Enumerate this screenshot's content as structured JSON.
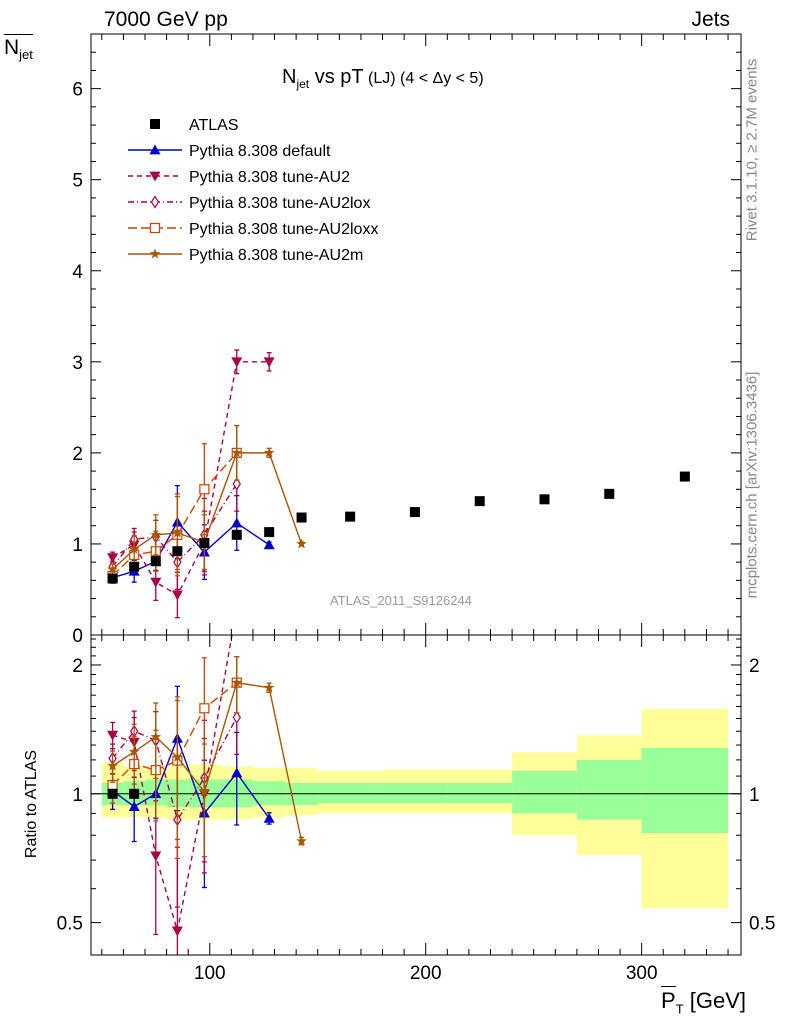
{
  "header": {
    "left": "7000 GeV pp",
    "right": "Jets"
  },
  "y_axis_title": {
    "main": "N",
    "sub": "jet"
  },
  "ratio_axis_title": "Ratio to ATLAS",
  "x_axis_title": {
    "main": "P",
    "sub": "T",
    "unit": " [GeV]"
  },
  "side_labels": {
    "rivet": "Rivet 3.1.10, ≥ 2.7M events",
    "mcplots": "mcplots.cern.ch [arXiv:1306.3436]"
  },
  "watermark": "ATLAS_2011_S9126244",
  "chart_data": {
    "type": "line",
    "title": {
      "main": "N",
      "sub": "jet",
      "rest": " vs pT",
      "qualifier": " (LJ) (4 < Δy < 5)"
    },
    "xlim": [
      45,
      346
    ],
    "main_ylim": [
      0,
      6.6
    ],
    "main_yticks": [
      "0",
      "1",
      "2",
      "3",
      "4",
      "5",
      "6"
    ],
    "ratio_ylim": [
      0.42,
      2.35
    ],
    "ratio_yticks": [
      "0.5",
      "1",
      "2"
    ],
    "x_ticks": [
      "100",
      "200",
      "300"
    ],
    "legend": [
      "ATLAS",
      "Pythia 8.308 default",
      "Pythia 8.308 tune-AU2",
      "Pythia 8.308 tune-AU2lox",
      "Pythia 8.308 tune-AU2loxx",
      "Pythia 8.308 tune-AU2m"
    ],
    "legend_position": "top-left",
    "data": {
      "name": "ATLAS",
      "color": "#000000",
      "x": [
        55,
        65,
        75,
        85,
        97.5,
        112.5,
        127.5,
        142.5,
        165,
        195,
        225,
        255,
        285,
        320
      ],
      "y": [
        0.62,
        0.75,
        0.81,
        0.92,
        1.01,
        1.1,
        1.13,
        1.29,
        1.3,
        1.35,
        1.47,
        1.49,
        1.55,
        1.74
      ]
    },
    "uncertainty_bands": {
      "edges": [
        50,
        60,
        70,
        80,
        90,
        105,
        120,
        135,
        150,
        180,
        210,
        240,
        270,
        300,
        340
      ],
      "inner": [
        [
          0.94,
          1.06
        ],
        [
          0.94,
          1.07
        ],
        [
          0.94,
          1.08
        ],
        [
          0.93,
          1.08
        ],
        [
          0.93,
          1.08
        ],
        [
          0.93,
          1.08
        ],
        [
          0.94,
          1.07
        ],
        [
          0.94,
          1.06
        ],
        [
          0.95,
          1.06
        ],
        [
          0.95,
          1.06
        ],
        [
          0.95,
          1.06
        ],
        [
          0.9,
          1.13
        ],
        [
          0.87,
          1.2
        ],
        [
          0.81,
          1.28
        ]
      ],
      "outer": [
        [
          0.88,
          1.18
        ],
        [
          0.88,
          1.16
        ],
        [
          0.88,
          1.16
        ],
        [
          0.87,
          1.16
        ],
        [
          0.87,
          1.17
        ],
        [
          0.87,
          1.16
        ],
        [
          0.88,
          1.15
        ],
        [
          0.89,
          1.15
        ],
        [
          0.9,
          1.13
        ],
        [
          0.9,
          1.14
        ],
        [
          0.9,
          1.14
        ],
        [
          0.8,
          1.25
        ],
        [
          0.72,
          1.37
        ],
        [
          0.54,
          1.58
        ]
      ],
      "inner_color": "#99ff99",
      "outer_color": "#ffff99"
    },
    "series": [
      {
        "name": "Pythia 8.308 default",
        "color": "#0000cc",
        "dash": "",
        "marker": "triangle-up",
        "x": [
          55,
          65,
          75,
          85,
          97.5,
          112.5,
          127.5
        ],
        "y": [
          0.63,
          0.7,
          0.81,
          1.24,
          0.91,
          1.23,
          0.99
        ],
        "err": [
          0.06,
          0.12,
          0.1,
          0.4,
          0.3,
          0.3,
          0.03
        ]
      },
      {
        "name": "Pythia 8.308 tune-AU2",
        "color": "#aa0044",
        "dash": "5,4",
        "marker": "triangle-down",
        "x": [
          55,
          65,
          75,
          85,
          97.5,
          112.5,
          127.5
        ],
        "y": [
          0.85,
          0.99,
          0.58,
          0.44,
          1.01,
          3.0,
          3.0
        ],
        "err": [
          0.06,
          0.14,
          0.2,
          0.25,
          0.35,
          0.13,
          0.1
        ]
      },
      {
        "name": "Pythia 8.308 tune-AU2lox",
        "color": "#aa0044",
        "dash": "6,3,1,3",
        "marker": "diamond-open",
        "x": [
          55,
          65,
          75,
          85,
          97.5,
          112.5
        ],
        "y": [
          0.75,
          1.05,
          1.08,
          0.8,
          1.1,
          1.66
        ],
        "err": [
          0.06,
          0.12,
          0.18,
          0.3,
          0.4,
          0.3
        ]
      },
      {
        "name": "Pythia 8.308 tune-AU2loxx",
        "color": "#cc4400",
        "dash": "9,4",
        "marker": "square-open",
        "x": [
          55,
          65,
          75,
          85,
          97.5,
          112.5
        ],
        "y": [
          0.65,
          0.88,
          0.92,
          1.1,
          1.6,
          2.0
        ],
        "err": [
          0.06,
          0.14,
          0.22,
          0.45,
          0.5,
          0.3
        ]
      },
      {
        "name": "Pythia 8.308 tune-AU2m",
        "color": "#aa5500",
        "dash": "",
        "marker": "star",
        "x": [
          55,
          65,
          75,
          85,
          97.5,
          112.5,
          127.5,
          142.5
        ],
        "y": [
          0.72,
          0.94,
          1.1,
          1.12,
          1.02,
          2.0,
          2.0,
          1.0
        ],
        "err": [
          0.06,
          0.15,
          0.22,
          0.4,
          0.3,
          0.3,
          0.05,
          0.02
        ]
      }
    ]
  }
}
